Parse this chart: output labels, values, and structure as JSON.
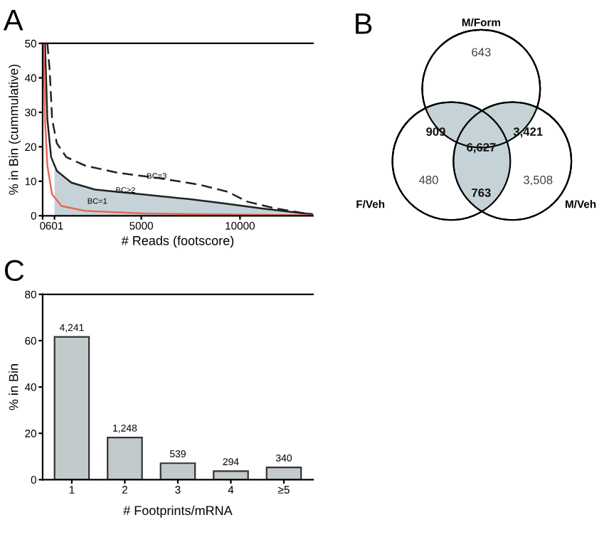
{
  "chart_data": [
    {
      "type": "line",
      "title": "A",
      "xlabel": "# Reads (footscore)",
      "ylabel": "% in Bin (cummulative)",
      "xlim": [
        0,
        13700
      ],
      "ylim": [
        0,
        50
      ],
      "xticks": [
        0,
        {
          "value": 601,
          "label": "601"
        },
        5000,
        10000
      ],
      "yticks": [
        0,
        10,
        20,
        30,
        40,
        50
      ],
      "grid": false,
      "legend": false,
      "series": [
        {
          "type": "area",
          "color": "#c5d3d8",
          "x": [
            601,
            960,
            2170,
            5060,
            8670,
            13700
          ],
          "values": [
            13.6,
            11.5,
            8.1,
            6.2,
            4.3,
            0.4
          ]
        },
        {
          "type": "line",
          "color": "#222222",
          "line_style": "dashed",
          "x": [
            240,
            360,
            480,
            720,
            1200,
            2170,
            3860,
            5780,
            7950,
            9400,
            10360,
            11800,
            13250,
            13700
          ],
          "values": [
            50,
            42,
            28,
            21,
            17,
            14.5,
            12.4,
            11,
            9,
            6.9,
            4.1,
            2.1,
            0.7,
            0.4
          ]
        },
        {
          "type": "line",
          "color": "#222222",
          "line_style": "solid",
          "x": [
            120,
            240,
            430,
            720,
            1450,
            2650,
            5060,
            7470,
            9400,
            11080,
            12770,
            13700
          ],
          "values": [
            50,
            28,
            17,
            13,
            9.6,
            7.6,
            6.2,
            4.8,
            3.4,
            2.1,
            1,
            0.4
          ]
        },
        {
          "type": "line",
          "color": "#e8675a",
          "line_style": "solid",
          "x": [
            50,
            120,
            240,
            480,
            960,
            2170,
            5060,
            8670,
            13700
          ],
          "values": [
            50,
            28,
            14.5,
            6.2,
            2.8,
            1.4,
            0.7,
            0.4,
            0.1
          ]
        }
      ],
      "annotations": [
        {
          "text": "BC=3",
          "x": 5780,
          "y": 10.3
        },
        {
          "text": "BC≥2",
          "x": 4200,
          "y": 6.2
        },
        {
          "text": "BC=1",
          "x": 2770,
          "y": 3
        }
      ]
    },
    {
      "type": "other",
      "title": "B",
      "annotations": [
        "M/Form",
        "F/Veh",
        "M/Veh",
        "643",
        "480",
        "3,508",
        "909",
        "3,421",
        "763",
        "6,627"
      ],
      "colors": [
        "#ffffff",
        "#ffffff",
        "#ffffff",
        "#c5d3d8",
        "#c5d3d8",
        "#c5d3d8",
        "#c5d3d8"
      ]
    },
    {
      "type": "bar",
      "title": "C",
      "xlabel": "# Footprints/mRNA",
      "ylabel": "% in Bin",
      "categories": [
        "1",
        "2",
        "3",
        "4",
        "≥5"
      ],
      "values": [
        61.6,
        18.2,
        7.1,
        3.7,
        5.3
      ],
      "annotations": [
        {
          "text": "4,241",
          "x": "1",
          "y": 61.6
        },
        {
          "text": "1,248",
          "x": "2",
          "y": 18.2
        },
        {
          "text": "539",
          "x": "3",
          "y": 7.1
        },
        {
          "text": "294",
          "x": "4",
          "y": 3.7
        },
        {
          "text": "340",
          "x": "≥5",
          "y": 5.3
        }
      ],
      "color": "#c3cacc",
      "ylim": [
        0,
        80
      ],
      "yticks": [
        0,
        20,
        40,
        60,
        80
      ],
      "grid": false
    }
  ]
}
